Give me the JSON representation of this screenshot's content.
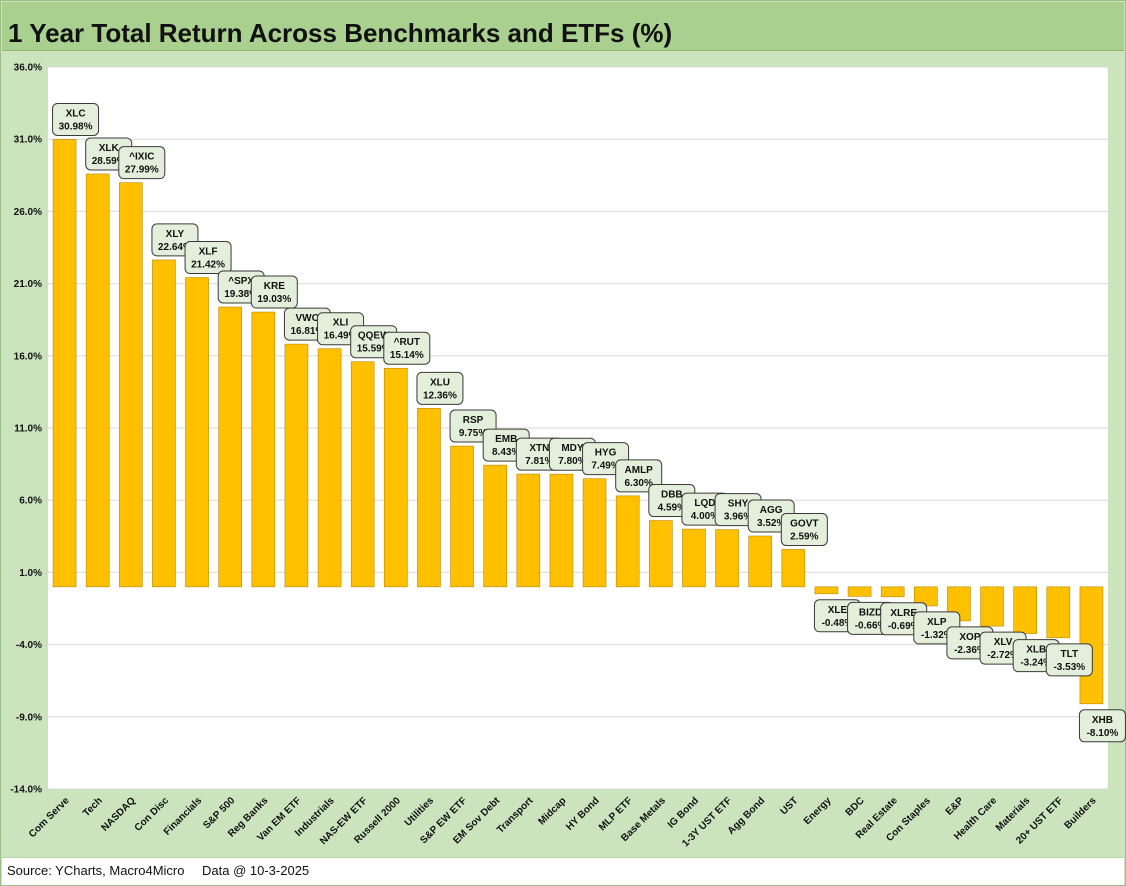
{
  "title": "1 Year Total Return Across Benchmarks and ETFs (%)",
  "footer": {
    "source": "Source: YCharts, Macro4Micro",
    "as_of": "Data @ 10-3-2025"
  },
  "colors": {
    "bar": "#ffc000",
    "bar_outline": "#b88a00",
    "label_box": "#e3efda",
    "label_box_border": "#3a3a3a",
    "plot_bg": "#ffffff",
    "gridline": "#d9d9d9"
  },
  "chart_data": {
    "type": "bar",
    "title": "1 Year Total Return Across Benchmarks and ETFs (%)",
    "xlabel": "",
    "ylabel": "",
    "ylim": [
      -14,
      36
    ],
    "yticks": [
      36,
      31,
      26,
      21,
      16,
      11,
      6,
      1,
      -4,
      -9,
      -14
    ],
    "ytick_labels": [
      "36.0%",
      "31.0%",
      "26.0%",
      "21.0%",
      "16.0%",
      "11.0%",
      "6.0%",
      "1.0%",
      "-4.0%",
      "-9.0%",
      "-14.0%"
    ],
    "grid": true,
    "legend": "none",
    "categories": [
      "Com Serve",
      "Tech",
      "NASDAQ",
      "Con Disc",
      "Financials",
      "S&P 500",
      "Reg Banks",
      "Van EM ETF",
      "Industrials",
      "NAS-EW ETF",
      "Russell 2000",
      "Utilities",
      "S&P EW ETF",
      "EM Sov Debt",
      "Transport",
      "Midcap",
      "HY Bond",
      "MLP ETF",
      "Base Metals",
      "IG Bond",
      "1-3Y UST ETF",
      "Agg Bond",
      "UST",
      "Energy",
      "BDC",
      "Real Estate",
      "Con Staples",
      "E&P",
      "Health Care",
      "Materials",
      "20+ UST ETF",
      "Builders"
    ],
    "tickers": [
      "XLC",
      "XLK",
      "^IXIC",
      "XLY",
      "XLF",
      "^SPX",
      "KRE",
      "VWO",
      "XLI",
      "QQEW",
      "^RUT",
      "XLU",
      "RSP",
      "EMB",
      "XTN",
      "MDY",
      "HYG",
      "AMLP",
      "DBB",
      "LQD",
      "SHY",
      "AGG",
      "GOVT",
      "XLE",
      "BIZD",
      "XLRE",
      "XLP",
      "XOP",
      "XLV",
      "XLB",
      "TLT",
      "XHB"
    ],
    "values": [
      30.98,
      28.59,
      27.99,
      22.64,
      21.42,
      19.38,
      19.03,
      16.81,
      16.49,
      15.59,
      15.14,
      12.36,
      9.75,
      8.43,
      7.81,
      7.8,
      7.49,
      6.3,
      4.59,
      4.0,
      3.96,
      3.52,
      2.59,
      -0.48,
      -0.66,
      -0.69,
      -1.32,
      -2.36,
      -2.72,
      -3.24,
      -3.53,
      -8.1
    ],
    "value_labels": [
      "30.98%",
      "28.59%",
      "27.99%",
      "22.64%",
      "21.42%",
      "19.38%",
      "19.03%",
      "16.81%",
      "16.49%",
      "15.59%",
      "15.14%",
      "12.36%",
      "9.75%",
      "8.43%",
      "7.81%",
      "7.80%",
      "7.49%",
      "6.30%",
      "4.59%",
      "4.00%",
      "3.96%",
      "3.52%",
      "2.59%",
      "-0.48%",
      "-0.66%",
      "-0.69%",
      "-1.32%",
      "-2.36%",
      "-2.72%",
      "-3.24%",
      "-3.53%",
      "-8.10%"
    ]
  }
}
